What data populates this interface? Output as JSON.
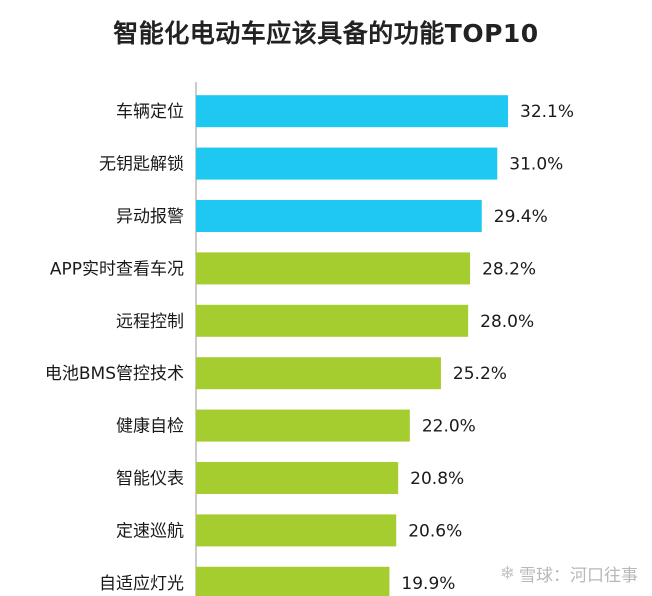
{
  "chart_data": {
    "type": "bar",
    "orientation": "horizontal",
    "title": "智能化电动车应该具备的功能TOP10",
    "xlabel": "",
    "ylabel": "",
    "xlim": [
      0,
      35
    ],
    "categories": [
      "车辆定位",
      "无钥匙解锁",
      "异动报警",
      "APP实时查看车况",
      "远程控制",
      "电池BMS管控技术",
      "健康自检",
      "智能仪表",
      "定速巡航",
      "自适应灯光"
    ],
    "values": [
      32.1,
      31.0,
      29.4,
      28.2,
      28.0,
      25.2,
      22.0,
      20.8,
      20.6,
      19.9
    ],
    "value_labels": [
      "32.1%",
      "31.0%",
      "29.4%",
      "28.2%",
      "28.0%",
      "25.2%",
      "22.0%",
      "20.8%",
      "20.6%",
      "19.9%"
    ],
    "colors": [
      "#1ec8f0",
      "#1ec8f0",
      "#1ec8f0",
      "#a6cd2f",
      "#a6cd2f",
      "#a6cd2f",
      "#a6cd2f",
      "#a6cd2f",
      "#a6cd2f",
      "#a6cd2f"
    ],
    "grid": false
  },
  "watermark": {
    "icon": "snowball-icon",
    "text": "雪球：河口往事"
  }
}
